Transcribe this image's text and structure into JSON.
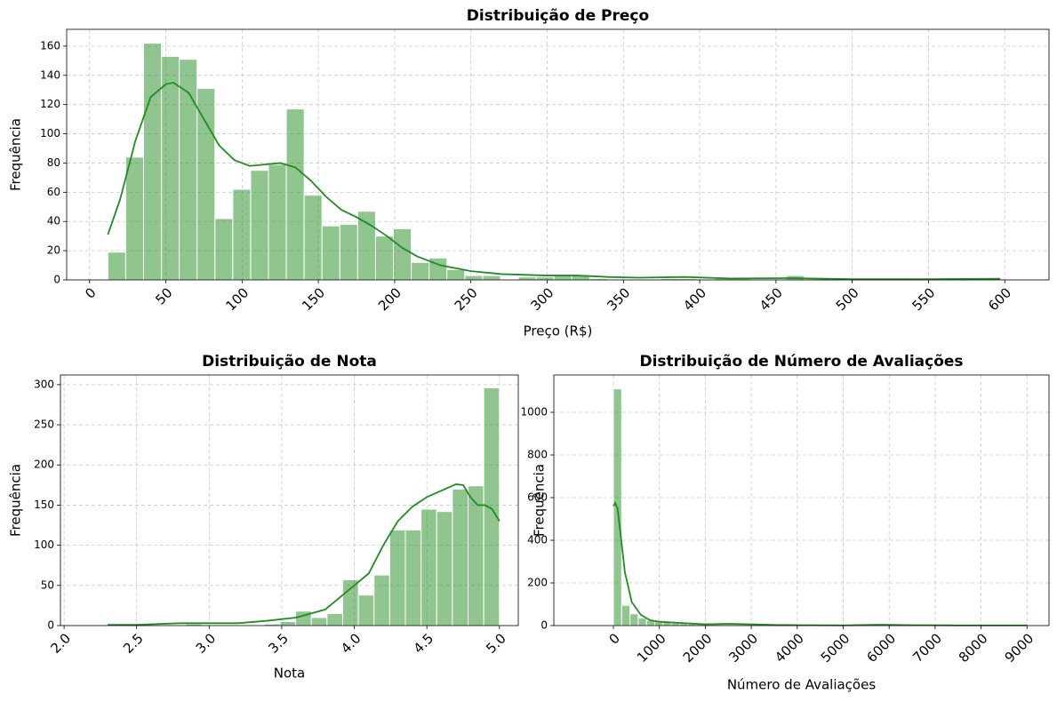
{
  "chart_data": [
    {
      "type": "histogram",
      "title": "Distribuição de Preço",
      "xlabel": "Preço (R$)",
      "ylabel": "Frequência",
      "bins": [
        12,
        23.7,
        35.4,
        47.1,
        58.8,
        70.5,
        82.2,
        93.9,
        105.6,
        117.3,
        129,
        140.7,
        152.4,
        164.1,
        175.8,
        187.5,
        199.2,
        210.9,
        222.6,
        234.3,
        246,
        257.7,
        269.4,
        281.1,
        292.8,
        304.5,
        316.2,
        327.9,
        339.6,
        351.3,
        363,
        374.7,
        386.4,
        398.1,
        409.8,
        421.5,
        433.2,
        444.9,
        456.6,
        468.3,
        480,
        491.7,
        503.4,
        515.1,
        526.8,
        538.5,
        550.2,
        561.9,
        573.6,
        585.3,
        597
      ],
      "counts": [
        19,
        84,
        162,
        153,
        151,
        131,
        42,
        62,
        75,
        79,
        117,
        58,
        37,
        38,
        47,
        30,
        35,
        12,
        15,
        7,
        3,
        3,
        0,
        2,
        2,
        3,
        3,
        1,
        0,
        0,
        0,
        1,
        1,
        0,
        1,
        1,
        0,
        0,
        3,
        0,
        0,
        0,
        0,
        0,
        0,
        1,
        0,
        0,
        0,
        1
      ],
      "kde": {
        "x": [
          12,
          20,
          30,
          40,
          50,
          55,
          65,
          75,
          85,
          95,
          105,
          115,
          125,
          135,
          145,
          155,
          165,
          175,
          185,
          195,
          205,
          215,
          230,
          250,
          270,
          300,
          320,
          340,
          360,
          390,
          420,
          460,
          500,
          550,
          597
        ],
        "y": [
          31,
          55,
          95,
          125,
          134,
          135,
          128,
          110,
          92,
          82,
          78,
          79,
          80,
          77,
          68,
          57,
          48,
          43,
          37,
          30,
          22,
          16,
          10,
          6,
          4,
          3,
          3,
          2,
          1.5,
          2,
          1,
          1.2,
          0.5,
          0.5,
          0.8
        ]
      },
      "color": "#228b22",
      "xlim": [
        -15,
        629
      ],
      "ylim": [
        0,
        171.5
      ],
      "xticks": [
        0,
        50,
        100,
        150,
        200,
        250,
        300,
        350,
        400,
        450,
        500,
        550,
        600
      ],
      "yticks": [
        0,
        20,
        40,
        60,
        80,
        100,
        120,
        140,
        160
      ],
      "grid": true
    },
    {
      "type": "histogram",
      "title": "Distribuição de Nota",
      "xlabel": "Nota",
      "ylabel": "Frequência",
      "bins": [
        2.3,
        2.408,
        2.516,
        2.624,
        2.732,
        2.84,
        2.948,
        3.056,
        3.164,
        3.272,
        3.38,
        3.488,
        3.596,
        3.704,
        3.812,
        3.92,
        4.028,
        4.136,
        4.244,
        4.352,
        4.46,
        4.568,
        4.676,
        4.784,
        4.892,
        5.0
      ],
      "counts": [
        1,
        0,
        0,
        1,
        1,
        2,
        1,
        1,
        1,
        1,
        2,
        5,
        18,
        10,
        15,
        57,
        38,
        63,
        119,
        119,
        145,
        142,
        170,
        174,
        296
      ],
      "kde": {
        "x": [
          2.3,
          2.5,
          2.8,
          3.0,
          3.2,
          3.4,
          3.6,
          3.8,
          3.9,
          4.0,
          4.1,
          4.2,
          4.3,
          4.4,
          4.5,
          4.6,
          4.7,
          4.75,
          4.8,
          4.85,
          4.9,
          4.95,
          5.0
        ],
        "y": [
          1,
          1,
          3,
          3,
          3,
          6,
          10,
          20,
          35,
          50,
          65,
          100,
          130,
          148,
          160,
          168,
          176,
          175,
          160,
          150,
          150,
          145,
          130
        ]
      },
      "color": "#228b22",
      "xlim": [
        1.975,
        5.13
      ],
      "ylim": [
        0,
        312
      ],
      "xticks": [
        {
          "value": 2,
          "label": "2.0"
        },
        2.5,
        {
          "value": 3,
          "label": "3.0"
        },
        3.5,
        {
          "value": 4,
          "label": "4.0"
        },
        4.5,
        {
          "value": 5,
          "label": "5.0"
        }
      ],
      "yticks": [
        0,
        50,
        100,
        150,
        200,
        250,
        300
      ],
      "grid": true
    },
    {
      "type": "histogram",
      "title": "Distribuição de Número de Avaliações",
      "xlabel": "Número de Avaliações",
      "ylabel": "Frequência",
      "bins": [
        0,
        180,
        360,
        540,
        720,
        900,
        1080,
        1260,
        1440,
        1620,
        1800,
        1980,
        2160,
        2340,
        2520,
        2700,
        2880,
        3060,
        3240,
        3420,
        3600,
        3780,
        3960,
        4140,
        4320,
        4500,
        4680,
        4860,
        5040,
        5220,
        5400,
        5580,
        5760,
        5940,
        6120,
        6300,
        6480,
        6660,
        6840,
        7020,
        7200,
        7380,
        7560,
        7740,
        7920,
        8100,
        8280,
        8460,
        8640,
        8820,
        9000
      ],
      "counts": [
        1110,
        95,
        55,
        35,
        25,
        18,
        15,
        12,
        10,
        8,
        6,
        5,
        5,
        4,
        3,
        3,
        3,
        2,
        1,
        1,
        1,
        1,
        0,
        0,
        0,
        0,
        0,
        0,
        0,
        0,
        0,
        1,
        0,
        0,
        0,
        0,
        0,
        0,
        0,
        0,
        0,
        0,
        0,
        0,
        0,
        0,
        0,
        0,
        0,
        1
      ],
      "kde": {
        "x": [
          0,
          40,
          90,
          150,
          250,
          400,
          600,
          800,
          1000,
          1500,
          2000,
          2500,
          3000,
          3500,
          4000,
          5000,
          5800,
          6500,
          7500,
          9000
        ],
        "y": [
          560,
          575,
          550,
          440,
          250,
          110,
          50,
          25,
          18,
          12,
          6,
          8,
          6,
          3,
          2,
          1,
          4,
          2,
          1,
          1
        ]
      },
      "color": "#228b22",
      "xlim": [
        -1296,
        9478
      ],
      "ylim": [
        0,
        1175
      ],
      "xticks": [
        0,
        1000,
        2000,
        3000,
        4000,
        5000,
        6000,
        7000,
        8000,
        9000
      ],
      "yticks": [
        0,
        200,
        400,
        600,
        800,
        1000
      ],
      "grid": true
    }
  ]
}
